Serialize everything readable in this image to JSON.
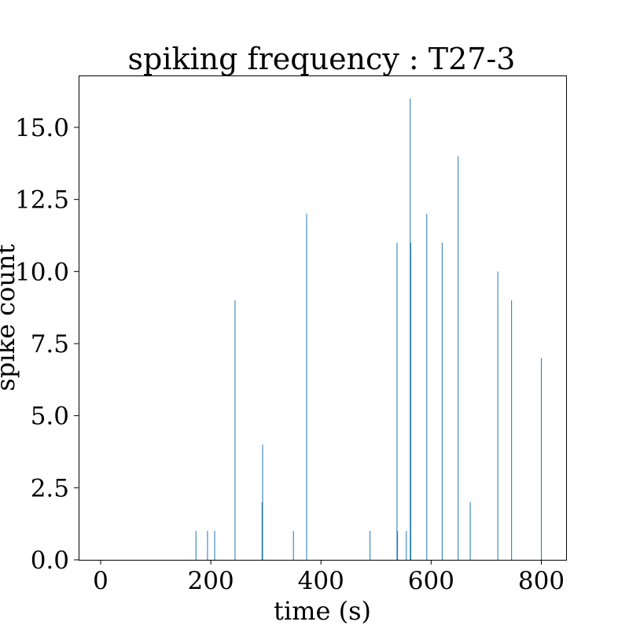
{
  "chart_data": {
    "type": "bar",
    "title": "spiking frequency : T27-3",
    "xlabel": "time (s)",
    "ylabel": "spike count",
    "xlim": [
      -40,
      845
    ],
    "ylim": [
      0,
      16.8
    ],
    "xticks": [
      0,
      200,
      400,
      600,
      800
    ],
    "xtick_labels": [
      "0",
      "200",
      "400",
      "600",
      "800"
    ],
    "yticks": [
      0,
      2.5,
      5,
      7.5,
      10,
      12.5,
      15
    ],
    "ytick_labels": [
      "0.0",
      "2.5",
      "5.0",
      "7.5",
      "10.0",
      "12.5",
      "15.0"
    ],
    "grid": false,
    "color": "#1f77b4",
    "bar_width": 1,
    "x": [
      173,
      194,
      207,
      244,
      293,
      294,
      350,
      374,
      489,
      538,
      539,
      555,
      562,
      563,
      592,
      620,
      649,
      671,
      721,
      746,
      800
    ],
    "values": [
      1,
      1,
      1,
      9,
      2,
      4,
      1,
      12,
      1,
      11,
      1,
      1,
      16,
      11,
      12,
      11,
      14,
      2,
      10,
      9,
      7
    ]
  }
}
